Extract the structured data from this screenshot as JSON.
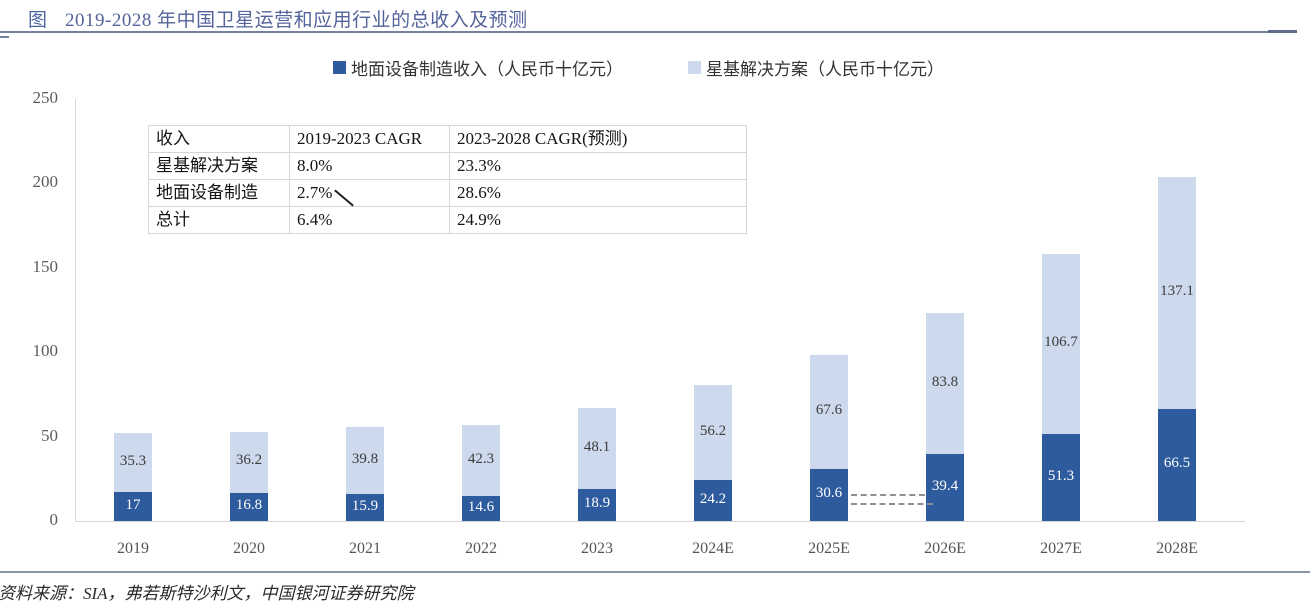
{
  "header": {
    "figure_label": "图",
    "title": "2019-2028 年中国卫星运营和应用行业的总收入及预测"
  },
  "chart_data": {
    "type": "bar",
    "stacked": true,
    "categories": [
      "2019",
      "2020",
      "2021",
      "2022",
      "2023",
      "2024E",
      "2025E",
      "2026E",
      "2027E",
      "2028E"
    ],
    "series": [
      {
        "name": "地面设备制造收入（人民币十亿元）",
        "color": "#2E5B9E",
        "label_color": "#FFFFFF",
        "values": [
          17,
          16.8,
          15.9,
          14.6,
          18.9,
          24.2,
          30.6,
          39.4,
          51.3,
          66.5
        ]
      },
      {
        "name": "星基解决方案（人民币十亿元）",
        "color": "#CDD9EC",
        "label_color": "#3C3C3C",
        "values": [
          35.3,
          36.2,
          39.8,
          42.3,
          48.1,
          56.2,
          67.6,
          83.8,
          106.7,
          137.1
        ]
      }
    ],
    "title": "2019-2028 年中国卫星运营和应用行业的总收入及预测",
    "xlabel": "",
    "ylabel": "",
    "ylim": [
      0,
      250
    ],
    "yticks": [
      0,
      50,
      100,
      150,
      200,
      250
    ],
    "grid": false,
    "legend_position": "top"
  },
  "cagr_table": {
    "headers": [
      "收入",
      "2019-2023 CAGR",
      "2023-2028 CAGR(预测)"
    ],
    "rows": [
      [
        "星基解决方案",
        "8.0%",
        "23.3%"
      ],
      [
        "地面设备制造",
        "2.7%",
        "28.6%"
      ],
      [
        "总计",
        "6.4%",
        "24.9%"
      ]
    ]
  },
  "footer": {
    "source": "资料来源：SIA，弗若斯特沙利文，中国银河证券研究院"
  }
}
